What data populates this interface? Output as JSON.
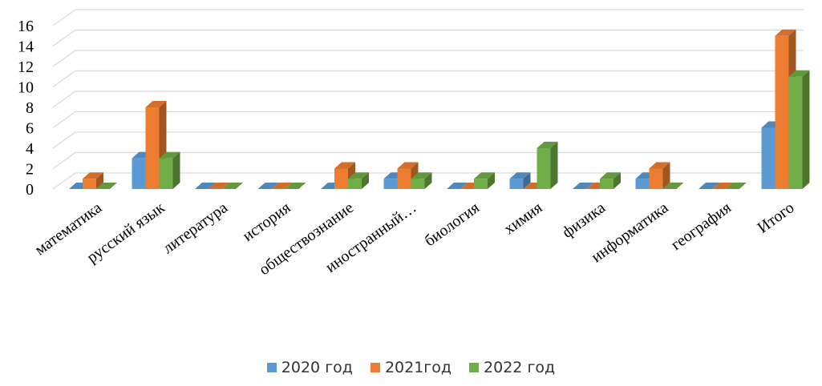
{
  "chart_data": {
    "type": "bar",
    "style": "3d-clustered-column",
    "categories": [
      "математика",
      "русский язык",
      "литература",
      "история",
      "обществознание",
      "иностранный…",
      "биология",
      "химия",
      "физика",
      "информатика",
      "география",
      "Итого"
    ],
    "series": [
      {
        "name": "2020 год",
        "color": "#5b9bd5",
        "values": [
          0,
          3,
          0,
          0,
          0,
          1,
          0,
          1,
          0,
          1,
          0,
          6
        ]
      },
      {
        "name": "2021год",
        "color": "#ed7d31",
        "values": [
          1,
          8,
          0,
          0,
          2,
          2,
          0,
          0,
          0,
          2,
          0,
          15
        ]
      },
      {
        "name": "2022 год",
        "color": "#70ad47",
        "values": [
          0,
          3,
          0,
          0,
          1,
          1,
          1,
          4,
          1,
          0,
          0,
          11
        ]
      }
    ],
    "yticks": [
      "0",
      "2",
      "4",
      "6",
      "8",
      "10",
      "12",
      "14",
      "16"
    ],
    "ylim": [
      0,
      16
    ],
    "grid": true,
    "legend_position": "bottom"
  }
}
